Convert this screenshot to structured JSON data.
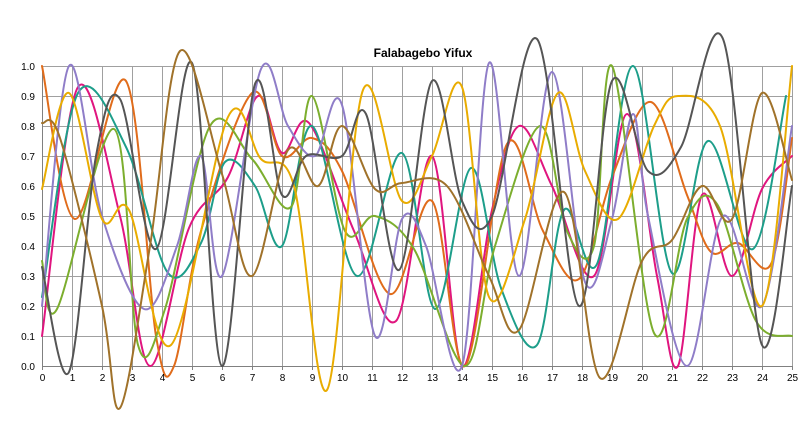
{
  "chart_data": {
    "type": "line",
    "title": "Falabagebo Yifux",
    "xlabel": "",
    "ylabel": "",
    "xlim": [
      0,
      25
    ],
    "ylim": [
      0,
      1.0
    ],
    "x_ticks": [
      "0",
      "1",
      "2",
      "3",
      "4",
      "5",
      "6",
      "7",
      "8",
      "9",
      "10",
      "11",
      "12",
      "13",
      "14",
      "15",
      "16",
      "17",
      "18",
      "19",
      "20",
      "21",
      "22",
      "23",
      "24",
      "25"
    ],
    "y_ticks": [
      "0.0",
      "0.1",
      "0.2",
      "0.3",
      "0.4",
      "0.5",
      "0.6",
      "0.7",
      "0.8",
      "0.9",
      "1.0"
    ],
    "grid": true,
    "legend": "none",
    "smooth": true,
    "series": [
      {
        "color": "#e0157f",
        "x": [
          0,
          1.2,
          2.6,
          3.6,
          4.9,
          6.2,
          7.2,
          8.0,
          8.9,
          10.4,
          11.8,
          13.0,
          14.0,
          15.0,
          15.9,
          17.0,
          18.4,
          19.5,
          20.5,
          21.2,
          22.0,
          23.0,
          24.0,
          25.0
        ],
        "y": [
          0.1,
          0.93,
          0.5,
          0.0,
          0.46,
          0.63,
          0.9,
          0.71,
          0.81,
          0.45,
          0.15,
          0.7,
          0.0,
          0.52,
          0.8,
          0.6,
          0.3,
          0.84,
          0.3,
          0.0,
          0.57,
          0.3,
          0.59,
          0.7
        ]
      },
      {
        "color": "#e06c1b",
        "x": [
          0,
          1.1,
          2.8,
          3.8,
          4.4,
          5.3,
          7.0,
          8.0,
          9.0,
          10.0,
          11.6,
          13.0,
          14.1,
          15.5,
          16.7,
          17.9,
          19.0,
          20.3,
          21.5,
          22.3,
          23.2,
          24.3,
          25.0
        ],
        "y": [
          1.0,
          0.49,
          0.95,
          0.1,
          0.0,
          0.45,
          0.91,
          0.7,
          0.76,
          0.65,
          0.24,
          0.55,
          0.0,
          0.74,
          0.45,
          0.29,
          0.63,
          0.88,
          0.57,
          0.38,
          0.41,
          0.34,
          0.76
        ]
      },
      {
        "color": "#1d9e8a",
        "x": [
          0,
          1.2,
          2.8,
          4.2,
          5.3,
          6.1,
          7.1,
          8.0,
          9.0,
          10.5,
          12.0,
          13.1,
          14.3,
          15.3,
          16.5,
          17.4,
          18.5,
          19.7,
          21.0,
          22.2,
          23.7,
          24.8
        ],
        "y": [
          0.23,
          0.91,
          0.73,
          0.31,
          0.41,
          0.68,
          0.6,
          0.4,
          0.8,
          0.3,
          0.71,
          0.19,
          0.66,
          0.26,
          0.07,
          0.52,
          0.34,
          1.0,
          0.31,
          0.75,
          0.39,
          0.9
        ]
      },
      {
        "color": "#7cae2e",
        "x": [
          0,
          0.5,
          2.4,
          3.2,
          4.1,
          5.6,
          7.0,
          8.3,
          9.0,
          10.1,
          11.1,
          12.4,
          14.1,
          15.1,
          16.6,
          17.5,
          18.4,
          19.0,
          20.4,
          21.5,
          22.5,
          23.8,
          25.0
        ],
        "y": [
          0.35,
          0.19,
          0.79,
          0.07,
          0.19,
          0.8,
          0.69,
          0.53,
          0.9,
          0.45,
          0.5,
          0.39,
          0.0,
          0.4,
          0.8,
          0.45,
          0.4,
          1.0,
          0.11,
          0.49,
          0.54,
          0.15,
          0.1
        ]
      },
      {
        "color": "#8f7dc8",
        "x": [
          0,
          0.9,
          2.0,
          3.4,
          4.5,
          5.3,
          6.0,
          7.3,
          8.2,
          9.1,
          10.0,
          11.1,
          12.0,
          12.8,
          14.0,
          14.9,
          15.9,
          17.0,
          18.1,
          19.0,
          19.7,
          20.2,
          21.5,
          22.7,
          24.0,
          25.0
        ],
        "y": [
          0.2,
          1.0,
          0.5,
          0.19,
          0.4,
          0.7,
          0.3,
          0.99,
          0.8,
          0.7,
          0.87,
          0.1,
          0.49,
          0.4,
          0.0,
          1.01,
          0.3,
          0.98,
          0.28,
          0.49,
          0.84,
          0.5,
          0.0,
          0.5,
          0.2,
          0.8
        ]
      },
      {
        "color": "#e9ac00",
        "x": [
          0,
          0.9,
          2.0,
          2.9,
          4.3,
          6.2,
          7.3,
          8.4,
          9.5,
          10.7,
          12.0,
          13.0,
          14.0,
          14.9,
          16.1,
          17.2,
          18.1,
          19.2,
          20.4,
          21.2,
          22.6,
          24.0,
          25.0
        ],
        "y": [
          0.59,
          0.91,
          0.49,
          0.52,
          0.07,
          0.83,
          0.69,
          0.6,
          -0.08,
          0.92,
          0.55,
          0.7,
          0.93,
          0.23,
          0.49,
          0.91,
          0.65,
          0.49,
          0.8,
          0.9,
          0.8,
          0.2,
          1.0
        ]
      },
      {
        "color": "#555555",
        "x": [
          0,
          0.9,
          1.8,
          2.6,
          3.8,
          5.0,
          6.0,
          7.1,
          8.0,
          8.8,
          10.0,
          10.8,
          11.9,
          13.0,
          14.0,
          15.0,
          16.5,
          17.9,
          19.0,
          20.2,
          21.3,
          22.7,
          24.0,
          25.0
        ],
        "y": [
          0.33,
          -0.02,
          0.7,
          0.89,
          0.39,
          1.01,
          0.0,
          0.94,
          0.57,
          0.7,
          0.7,
          0.84,
          0.32,
          0.95,
          0.55,
          0.5,
          1.09,
          0.2,
          0.95,
          0.65,
          0.73,
          1.09,
          0.07,
          0.6
        ]
      },
      {
        "color": "#a0722a",
        "x": [
          0,
          0.6,
          2.0,
          2.6,
          3.6,
          4.6,
          6.0,
          7.0,
          8.2,
          9.2,
          10.0,
          11.1,
          12.0,
          13.5,
          14.9,
          15.9,
          17.4,
          18.6,
          20.0,
          21.0,
          22.0,
          23.0,
          24.0,
          25.0
        ],
        "y": [
          0.81,
          0.76,
          0.2,
          -0.14,
          0.4,
          1.05,
          0.64,
          0.3,
          0.72,
          0.6,
          0.8,
          0.59,
          0.61,
          0.6,
          0.3,
          0.12,
          0.58,
          -0.04,
          0.35,
          0.42,
          0.6,
          0.49,
          0.91,
          0.62
        ]
      }
    ]
  }
}
